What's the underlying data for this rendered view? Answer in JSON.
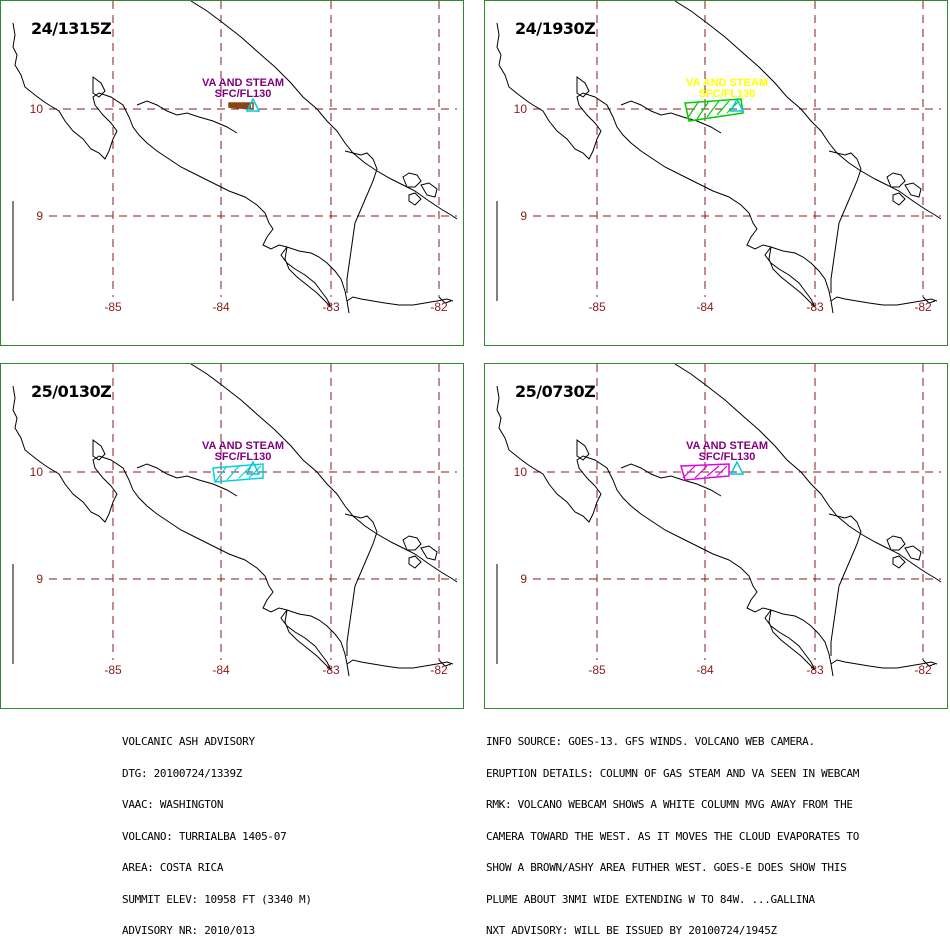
{
  "panels": [
    {
      "timestamp": "24/1315Z",
      "label_line1": "VA AND STEAM",
      "label_line2": "SFC/FL130",
      "label_color": "#800080",
      "plume_color": "#8b4513",
      "volcano_color": "#00c8d8"
    },
    {
      "timestamp": "24/1930Z",
      "label_line1": "VA AND STEAM",
      "label_line2": "SFC/FL130",
      "label_color": "#ffff00",
      "plume_color": "#00cc00",
      "volcano_color": "#00c8d8"
    },
    {
      "timestamp": "25/0130Z",
      "label_line1": "VA AND STEAM",
      "label_line2": "SFC/FL130",
      "label_color": "#800080",
      "plume_color": "#00d0e0",
      "volcano_color": "#00c8d8"
    },
    {
      "timestamp": "25/0730Z",
      "label_line1": "VA AND STEAM",
      "label_line2": "SFC/FL130",
      "label_color": "#800080",
      "plume_color": "#e000e0",
      "volcano_color": "#00c8d8"
    }
  ],
  "map": {
    "lat_labels": [
      "10",
      "9"
    ],
    "lon_labels": [
      "-85",
      "-84",
      "-83",
      "-82"
    ],
    "grid_color": "#8b1a1a"
  },
  "advisory": {
    "lines": [
      "VOLCANIC ASH ADVISORY",
      "DTG: 20100724/1339Z",
      "VAAC: WASHINGTON",
      "VOLCANO: TURRIALBA 1405-07",
      "AREA: COSTA RICA",
      "SUMMIT ELEV: 10958 FT (3340 M)",
      "ADVISORY NR: 2010/013"
    ]
  },
  "info": {
    "lines": [
      "INFO SOURCE: GOES-13. GFS WINDS. VOLCANO WEB CAMERA.",
      "ERUPTION DETAILS: COLUMN OF GAS STEAM AND VA SEEN IN WEBCAM",
      "RMK: VOLCANO WEBCAM SHOWS A WHITE COLUMN MVG AWAY FROM THE",
      "CAMERA TOWARD THE WEST. AS IT MOVES THE CLOUD EVAPORATES TO",
      "SHOW A BROWN/ASHY AREA FUTHER WEST. GOES-E DOES SHOW THIS",
      "PLUME ABOUT 3NMI WIDE EXTENDING W TO 84W. ...GALLINA",
      "NXT ADVISORY: WILL BE ISSUED BY 20100724/1945Z"
    ]
  }
}
